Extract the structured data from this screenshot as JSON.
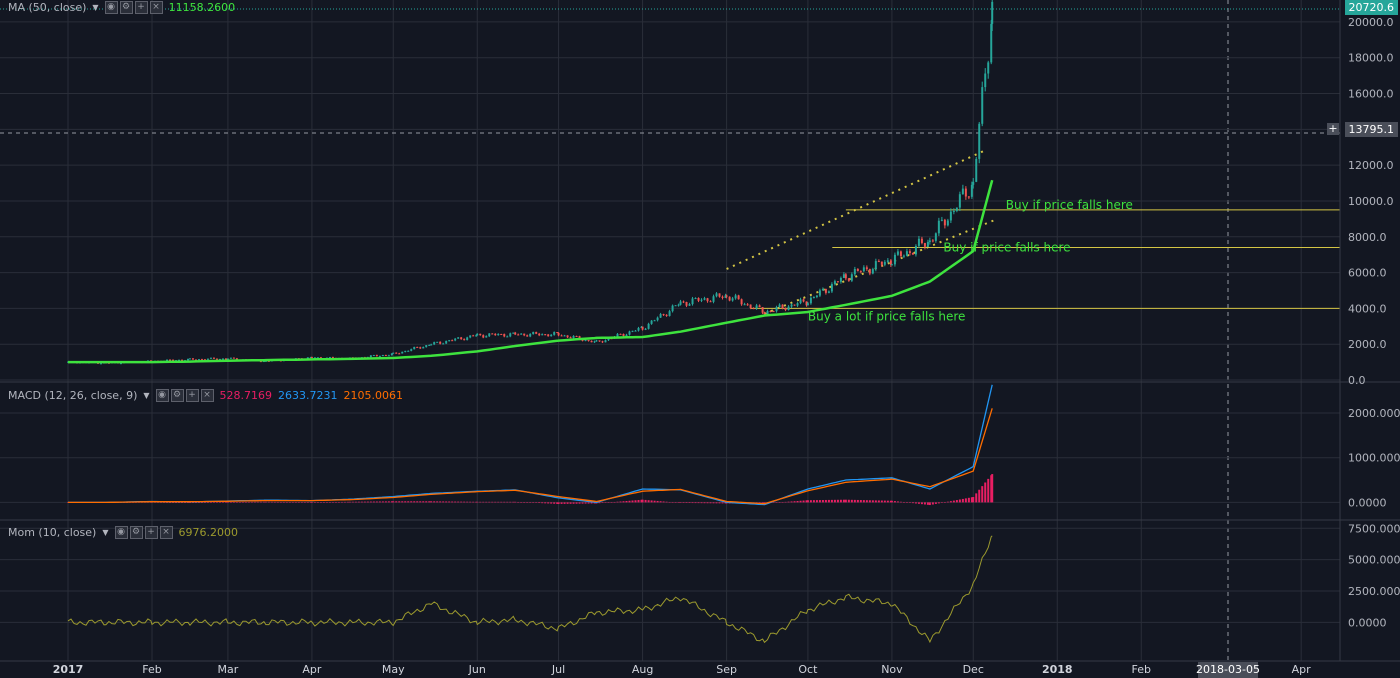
{
  "colors": {
    "background": "#131722",
    "grid": "#2a2e39",
    "candle_up": "#26a69a",
    "candle_down": "#ef5350",
    "ma": "#3ee33e",
    "macd_line": "#2196f3",
    "signal_line": "#ff6d00",
    "histogram": "#e91e63",
    "momentum": "#9c9a2e",
    "levels": "#d4c544",
    "annotation": "#3ee33e"
  },
  "indicators": {
    "ma": {
      "label": "MA (50, close)",
      "value": "11158.2600"
    },
    "macd": {
      "label": "MACD (12, 26, close, 9)",
      "hist": "528.7169",
      "macd": "2633.7231",
      "signal": "2105.0061"
    },
    "mom": {
      "label": "Mom (10, close)",
      "value": "6976.2000"
    }
  },
  "price_tags": {
    "last": "20720.6",
    "cursor": "13795.1"
  },
  "x_axis": {
    "labels": [
      "2017",
      "Feb",
      "Mar",
      "Apr",
      "May",
      "Jun",
      "Jul",
      "Aug",
      "Sep",
      "Oct",
      "Nov",
      "Dec",
      "2018",
      "Feb",
      "Mar",
      "Apr"
    ],
    "cursor_label": "2018-03-05"
  },
  "chart_data": [
    {
      "type": "candlestick",
      "pane": "price",
      "y_ticks": [
        "0.0",
        "2000.0",
        "4000.0",
        "6000.0",
        "8000.0",
        "10000.0",
        "12000.0",
        "14000.0",
        "16000.0",
        "18000.0",
        "20000.0"
      ],
      "ylim": [
        0,
        21000
      ],
      "x": [
        "2017-01-01",
        "2017-01-15",
        "2017-02-01",
        "2017-02-15",
        "2017-03-01",
        "2017-03-15",
        "2017-04-01",
        "2017-04-15",
        "2017-05-01",
        "2017-05-15",
        "2017-06-01",
        "2017-06-15",
        "2017-07-01",
        "2017-07-15",
        "2017-08-01",
        "2017-08-15",
        "2017-09-01",
        "2017-09-15",
        "2017-10-01",
        "2017-10-15",
        "2017-11-01",
        "2017-11-15",
        "2017-12-01",
        "2017-12-08"
      ],
      "close": [
        1000,
        950,
        1050,
        1150,
        1200,
        1050,
        1250,
        1200,
        1450,
        2000,
        2500,
        2550,
        2550,
        2100,
        2900,
        4300,
        4700,
        3800,
        4400,
        5800,
        6700,
        7800,
        11000,
        20720
      ],
      "ma": [
        1000,
        1000,
        1000,
        1030,
        1080,
        1110,
        1150,
        1180,
        1230,
        1350,
        1600,
        1900,
        2200,
        2350,
        2400,
        2700,
        3200,
        3600,
        3800,
        4200,
        4700,
        5500,
        7200,
        11158
      ],
      "annotations": [
        {
          "text": "Buy if price falls here",
          "level": 9500
        },
        {
          "text": "Buy if price falls here",
          "level": 7400
        },
        {
          "text": "Buy a lot if price falls here",
          "level": 4000
        }
      ],
      "levels": [
        9500,
        7400,
        4000
      ]
    },
    {
      "type": "line",
      "pane": "macd",
      "y_ticks": [
        "0.0000",
        "1000.0000",
        "2000.0000"
      ],
      "ylim": [
        -350,
        2650
      ],
      "series": [
        {
          "name": "MACD",
          "values": [
            0,
            0,
            20,
            10,
            30,
            50,
            40,
            70,
            130,
            200,
            250,
            280,
            100,
            0,
            300,
            280,
            0,
            -50,
            300,
            500,
            550,
            300,
            800,
            2633
          ]
        },
        {
          "name": "Signal",
          "values": [
            0,
            0,
            15,
            15,
            25,
            40,
            40,
            60,
            110,
            180,
            240,
            270,
            130,
            20,
            250,
            290,
            20,
            -30,
            260,
            450,
            520,
            350,
            700,
            2105
          ]
        }
      ]
    },
    {
      "type": "line",
      "pane": "mom",
      "y_ticks": [
        "0.0000",
        "2500.0000",
        "5000.0000",
        "7500.0000"
      ],
      "ylim": [
        -3000,
        8000
      ],
      "values": [
        0,
        0,
        0,
        0,
        0,
        0,
        0,
        0,
        0,
        1500,
        0,
        200,
        -500,
        800,
        1000,
        2000,
        0,
        -1500,
        1000,
        2000,
        1500,
        -1500,
        3000,
        6976
      ]
    }
  ]
}
